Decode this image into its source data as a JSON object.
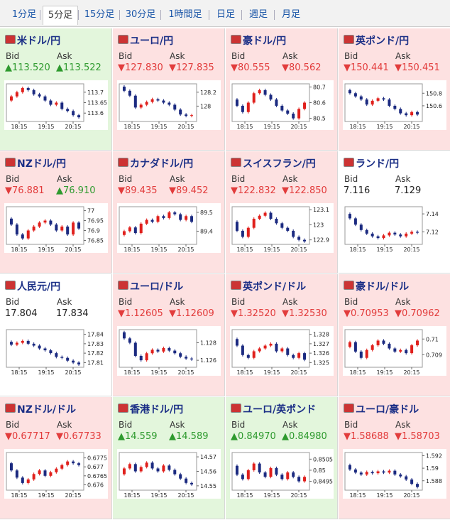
{
  "tabs": [
    "1分足",
    "5分足",
    "15分足",
    "30分足",
    "1時間足",
    "日足",
    "週足",
    "月足"
  ],
  "active_tab": 1,
  "labels": {
    "bid": "Bid",
    "ask": "Ask"
  },
  "times": [
    "18:15",
    "19:15",
    "20:15"
  ],
  "pairs": [
    {
      "name": "米ドル/円",
      "bid": "▲113.520",
      "ask": "▲113.522",
      "bg": "#e3f6dc",
      "ylim": [
        113.56,
        113.74
      ],
      "yticks": [
        113.7,
        113.65,
        113.6
      ],
      "closes": [
        113.66,
        113.68,
        113.7,
        113.72,
        113.71,
        113.69,
        113.68,
        113.66,
        113.64,
        113.65,
        113.62,
        113.61,
        113.59,
        113.58
      ]
    },
    {
      "name": "ユーロ/円",
      "bid": "▼127.830",
      "ask": "▼127.835",
      "bg": "#fde1e1",
      "ylim": [
        127.78,
        128.32
      ],
      "yticks": [
        128.2,
        128
      ],
      "closes": [
        128.28,
        128.22,
        128.15,
        127.98,
        128.02,
        128.06,
        128.1,
        128.08,
        128.05,
        128.02,
        127.95,
        127.88,
        127.86,
        127.87
      ]
    },
    {
      "name": "豪ドル/円",
      "bid": "▼80.555",
      "ask": "▼80.562",
      "bg": "#fde1e1",
      "ylim": [
        80.48,
        80.72
      ],
      "yticks": [
        80.7,
        80.6,
        80.5
      ],
      "closes": [
        80.62,
        80.58,
        80.54,
        80.6,
        80.66,
        80.68,
        80.65,
        80.62,
        80.58,
        80.55,
        80.53,
        80.5,
        80.56,
        80.6
      ]
    },
    {
      "name": "英ポンド/円",
      "bid": "▼150.441",
      "ask": "▼150.451",
      "bg": "#fde1e1",
      "ylim": [
        150.35,
        150.95
      ],
      "yticks": [
        150.8,
        150.6
      ],
      "closes": [
        150.85,
        150.8,
        150.75,
        150.7,
        150.62,
        150.68,
        150.72,
        150.7,
        150.6,
        150.55,
        150.48,
        150.45,
        150.5,
        150.46
      ]
    },
    {
      "name": "NZドル/円",
      "bid": "▼76.881",
      "ask": "▲76.910",
      "bg": "#fde1e1",
      "ylim": [
        76.83,
        77.02
      ],
      "yticks": [
        77,
        76.95,
        76.9,
        76.85
      ],
      "closes": [
        76.96,
        76.93,
        76.88,
        76.86,
        76.9,
        76.92,
        76.94,
        76.95,
        76.93,
        76.9,
        76.92,
        76.88,
        76.94,
        76.91
      ]
    },
    {
      "name": "カナダドル/円",
      "bid": "▼89.435",
      "ask": "▼89.452",
      "bg": "#fde1e1",
      "ylim": [
        89.33,
        89.53
      ],
      "yticks": [
        89.5,
        89.4
      ],
      "closes": [
        89.38,
        89.4,
        89.42,
        89.39,
        89.44,
        89.46,
        89.45,
        89.48,
        89.47,
        89.5,
        89.49,
        89.46,
        89.48,
        89.45
      ]
    },
    {
      "name": "スイスフラン/円",
      "bid": "▼122.832",
      "ask": "▼122.850",
      "bg": "#fde1e1",
      "ylim": [
        122.87,
        123.12
      ],
      "yticks": [
        123.1,
        123,
        122.9
      ],
      "closes": [
        123.02,
        122.96,
        122.92,
        122.98,
        123.04,
        123.06,
        123.08,
        123.04,
        123.01,
        122.98,
        122.96,
        122.92,
        122.9,
        122.89
      ]
    },
    {
      "name": "ランド/円",
      "bid": "7.116",
      "ask": "7.129",
      "bg": "#ffffff",
      "ylim": [
        7.106,
        7.148
      ],
      "yticks": [
        7.14,
        7.12
      ],
      "closes": [
        7.14,
        7.135,
        7.128,
        7.122,
        7.118,
        7.115,
        7.113,
        7.116,
        7.119,
        7.117,
        7.115,
        7.118,
        7.12,
        7.119
      ]
    },
    {
      "name": "人民元/円",
      "bid": "17.804",
      "ask": "17.834",
      "bg": "#ffffff",
      "ylim": [
        17.805,
        17.845
      ],
      "yticks": [
        17.84,
        17.83,
        17.82,
        17.81
      ],
      "closes": [
        17.832,
        17.829,
        17.831,
        17.833,
        17.83,
        17.828,
        17.825,
        17.823,
        17.82,
        17.816,
        17.815,
        17.812,
        17.81,
        17.808
      ]
    },
    {
      "name": "ユーロ/ドル",
      "bid": "▼1.12605",
      "ask": "▼1.12609",
      "bg": "#fde1e1",
      "ylim": [
        1.1252,
        1.1295
      ],
      "yticks": [
        1.128,
        1.126
      ],
      "closes": [
        1.1292,
        1.1285,
        1.128,
        1.1265,
        1.126,
        1.1268,
        1.1272,
        1.127,
        1.1274,
        1.1271,
        1.1268,
        1.1264,
        1.1262,
        1.1261
      ]
    },
    {
      "name": "英ポンド/ドル",
      "bid": "▼1.32520",
      "ask": "▼1.32530",
      "bg": "#fde1e1",
      "ylim": [
        1.3245,
        1.3285
      ],
      "yticks": [
        1.328,
        1.327,
        1.326,
        1.325
      ],
      "closes": [
        1.3275,
        1.3268,
        1.3258,
        1.3255,
        1.3262,
        1.3265,
        1.3268,
        1.327,
        1.3262,
        1.3265,
        1.3258,
        1.3255,
        1.326,
        1.3253
      ]
    },
    {
      "name": "豪ドル/ドル",
      "bid": "▼0.70953",
      "ask": "▼0.70962",
      "bg": "#fde1e1",
      "ylim": [
        0.7082,
        0.7106
      ],
      "yticks": [
        0.71,
        0.709
      ],
      "closes": [
        0.7095,
        0.7098,
        0.7092,
        0.7088,
        0.7093,
        0.7096,
        0.7099,
        0.7097,
        0.7094,
        0.7092,
        0.7093,
        0.7091,
        0.7096,
        0.7099
      ]
    },
    {
      "name": "NZドル/ドル",
      "bid": "▼0.67717",
      "ask": "▼0.67733",
      "bg": "#fde1e1",
      "ylim": [
        0.6757,
        0.6778
      ],
      "yticks": [
        0.6775,
        0.677,
        0.6765,
        0.676
      ],
      "closes": [
        0.6772,
        0.6768,
        0.6764,
        0.6761,
        0.6763,
        0.6766,
        0.6768,
        0.6765,
        0.6767,
        0.6769,
        0.6771,
        0.6773,
        0.6772,
        0.6771
      ]
    },
    {
      "name": "香港ドル/円",
      "bid": "▲14.559",
      "ask": "▲14.589",
      "bg": "#e3f6dc",
      "ylim": [
        14.547,
        14.573
      ],
      "yticks": [
        14.57,
        14.56,
        14.55
      ],
      "closes": [
        14.558,
        14.562,
        14.565,
        14.56,
        14.563,
        14.566,
        14.562,
        14.56,
        14.564,
        14.561,
        14.558,
        14.555,
        14.552,
        14.551
      ]
    },
    {
      "name": "ユーロ/英ポンド",
      "bid": "▲0.84970",
      "ask": "▲0.84980",
      "bg": "#e3f6dc",
      "ylim": [
        0.8491,
        0.8508
      ],
      "yticks": [
        0.8505,
        0.85,
        0.8495
      ],
      "closes": [
        0.8502,
        0.8498,
        0.8496,
        0.85,
        0.8503,
        0.8499,
        0.8497,
        0.8501,
        0.8498,
        0.8496,
        0.8499,
        0.8497,
        0.8495,
        0.8497
      ]
    },
    {
      "name": "ユーロ/豪ドル",
      "bid": "▼1.58688",
      "ask": "▼1.58703",
      "bg": "#fde1e1",
      "ylim": [
        1.5865,
        1.5925
      ],
      "yticks": [
        1.592,
        1.59,
        1.588
      ],
      "closes": [
        1.5905,
        1.5898,
        1.5893,
        1.589,
        1.5894,
        1.5892,
        1.5895,
        1.5893,
        1.5896,
        1.589,
        1.5887,
        1.5882,
        1.5875,
        1.587
      ]
    }
  ]
}
